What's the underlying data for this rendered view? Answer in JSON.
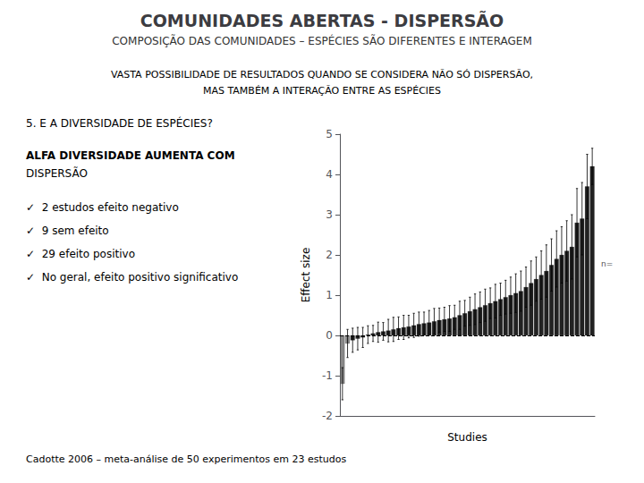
{
  "chart_data": {
    "type": "bar",
    "title": "COMUNIDADES ABERTAS - DISPERSÃO",
    "subtitle": "COMPOSIÇÃO DAS COMUNIDADES – ESPÉCIES SÃO DIFERENTES E INTERAGEM",
    "x_label": "Studies",
    "y_label": "Effect size",
    "categories": [
      null,
      null,
      null,
      null,
      null,
      null,
      null,
      null,
      null,
      null,
      null,
      null,
      null,
      null,
      null,
      null,
      null,
      null,
      null,
      null,
      null,
      null,
      null,
      null,
      null,
      null,
      null,
      null,
      null,
      null,
      null,
      null,
      null,
      null,
      null,
      null,
      null,
      null,
      null,
      null,
      null,
      null,
      null,
      null,
      null,
      null,
      null,
      null,
      null,
      null
    ],
    "values": [
      -1.2,
      -0.2,
      -0.12,
      -0.08,
      -0.05,
      0.02,
      0.05,
      0.08,
      0.1,
      0.12,
      0.15,
      0.18,
      0.2,
      0.22,
      0.25,
      0.28,
      0.3,
      0.32,
      0.35,
      0.38,
      0.4,
      0.42,
      0.45,
      0.5,
      0.55,
      0.6,
      0.65,
      0.7,
      0.75,
      0.8,
      0.85,
      0.9,
      0.95,
      1.0,
      1.05,
      1.1,
      1.2,
      1.3,
      1.4,
      1.5,
      1.6,
      1.75,
      1.9,
      2.0,
      2.1,
      2.2,
      2.8,
      2.9,
      3.7,
      4.2
    ],
    "errors": [
      0.4,
      0.35,
      0.3,
      0.28,
      0.25,
      0.22,
      0.2,
      0.25,
      0.22,
      0.28,
      0.3,
      0.28,
      0.3,
      0.28,
      0.3,
      0.3,
      0.28,
      0.3,
      0.32,
      0.3,
      0.3,
      0.32,
      0.3,
      0.35,
      0.32,
      0.35,
      0.38,
      0.38,
      0.4,
      0.38,
      0.42,
      0.4,
      0.42,
      0.45,
      0.48,
      0.5,
      0.5,
      0.55,
      0.55,
      0.6,
      0.65,
      0.65,
      0.7,
      0.7,
      0.75,
      0.8,
      0.85,
      0.9,
      0.8,
      0.45
    ],
    "colors": [
      "#888888",
      "#888888",
      "#222222",
      "#222222",
      "#222222",
      "#222222",
      "#222222",
      "#222222",
      "#222222",
      "#222222",
      "#222222",
      "#222222",
      "#222222",
      "#222222",
      "#222222",
      "#222222",
      "#222222",
      "#222222",
      "#222222",
      "#222222",
      "#222222",
      "#222222",
      "#222222",
      "#222222",
      "#222222",
      "#222222",
      "#222222",
      "#222222",
      "#222222",
      "#222222",
      "#222222",
      "#222222",
      "#222222",
      "#222222",
      "#222222",
      "#222222",
      "#222222",
      "#222222",
      "#222222",
      "#222222",
      "#222222",
      "#222222",
      "#222222",
      "#222222",
      "#222222",
      "#222222",
      "#222222",
      "#222222",
      "#222222",
      "#222222"
    ],
    "reference_line": {
      "value": 0,
      "line_style": "dashed"
    },
    "ylim": [
      -2,
      5
    ],
    "yticks": [
      -2,
      -1,
      0,
      1,
      2,
      3,
      4,
      5
    ],
    "grid": false,
    "tick_labels": "y",
    "annotations": [
      "VASTA POSSIBILIDADE DE RESULTADOS QUANDO SE CONSIDERA NÃO SÓ DISPERSÃO,",
      "MAS TAMBÉM A INTERAÇÃO ENTRE AS ESPÉCIES",
      "5. E A DIVERSIDADE DE ESPÉCIES?",
      "ALFA DIVERSIDADE AUMENTA COM",
      "DISPERSÃO",
      "✓  2 estudos efeito negativo",
      "✓  9 sem efeito",
      "✓  29 efeito positivo",
      "✓  No geral, efeito positivo significativo",
      "Cadotte 2006 – meta-análise de 50 experimentos em 23 estudos",
      "n="
    ]
  }
}
